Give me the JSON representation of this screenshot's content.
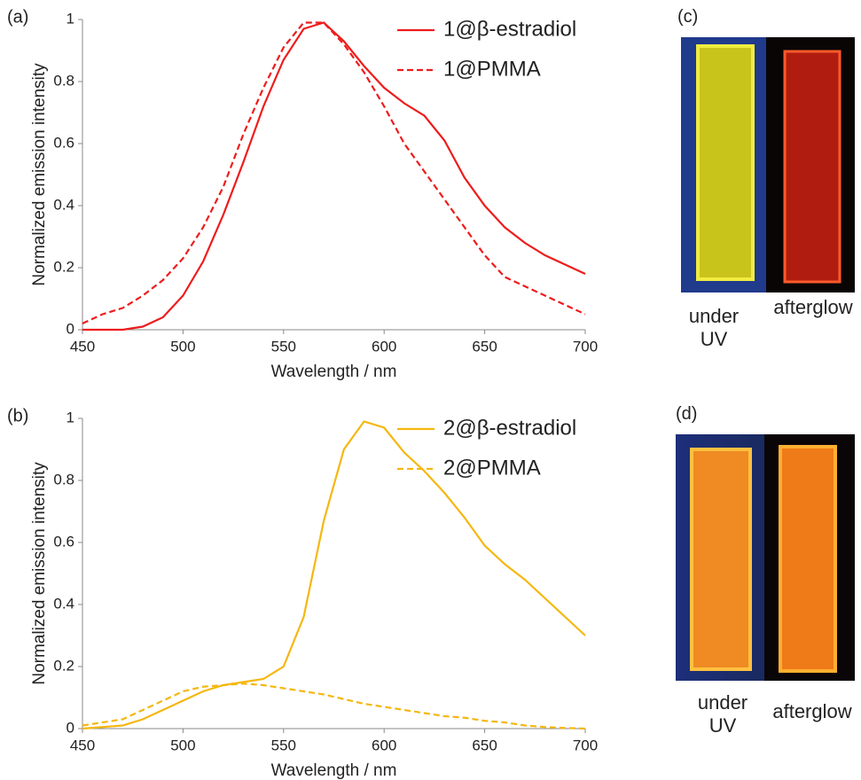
{
  "chart_data": [
    {
      "type": "line",
      "panel_label": "(a)",
      "xlabel": "Wavelength / nm",
      "ylabel": "Normalized emission intensity",
      "x": [
        450,
        460,
        470,
        480,
        490,
        500,
        510,
        520,
        530,
        540,
        550,
        560,
        570,
        580,
        590,
        600,
        610,
        620,
        630,
        640,
        650,
        660,
        670,
        680,
        690,
        700
      ],
      "series": [
        {
          "name": "1@β-estradiol",
          "color": "#ee1c1c",
          "line_style": "solid",
          "values": [
            0,
            0,
            0,
            0.01,
            0.04,
            0.11,
            0.22,
            0.37,
            0.54,
            0.72,
            0.87,
            0.97,
            0.99,
            0.93,
            0.85,
            0.78,
            0.73,
            0.69,
            0.61,
            0.49,
            0.4,
            0.33,
            0.28,
            0.24,
            0.21,
            0.18
          ]
        },
        {
          "name": "1@PMMA",
          "color": "#ee1c1c",
          "line_style": "dashed",
          "values": [
            0.02,
            0.05,
            0.07,
            0.11,
            0.16,
            0.23,
            0.33,
            0.46,
            0.63,
            0.78,
            0.91,
            0.99,
            0.99,
            0.92,
            0.83,
            0.72,
            0.6,
            0.51,
            0.42,
            0.33,
            0.24,
            0.17,
            0.14,
            0.11,
            0.08,
            0.05
          ]
        }
      ],
      "xlim": [
        450,
        700
      ],
      "xticks": [
        450,
        500,
        550,
        600,
        650,
        700
      ],
      "ylim": [
        0,
        1
      ],
      "yticks": [
        0,
        0.2,
        0.4,
        0.6,
        0.8,
        1
      ],
      "grid": false,
      "legend": "upper right"
    },
    {
      "type": "line",
      "panel_label": "(b)",
      "xlabel": "Wavelength / nm",
      "ylabel": "Normalized emission intensity",
      "x": [
        450,
        460,
        470,
        480,
        490,
        500,
        510,
        520,
        530,
        540,
        550,
        560,
        570,
        580,
        590,
        600,
        610,
        620,
        630,
        640,
        650,
        660,
        670,
        680,
        690,
        700
      ],
      "series": [
        {
          "name": "2@β-estradiol",
          "color": "#f5b70f",
          "line_style": "solid",
          "values": [
            0,
            0.005,
            0.01,
            0.03,
            0.06,
            0.09,
            0.12,
            0.14,
            0.15,
            0.16,
            0.2,
            0.36,
            0.67,
            0.9,
            0.99,
            0.97,
            0.89,
            0.83,
            0.76,
            0.68,
            0.59,
            0.53,
            0.48,
            0.42,
            0.36,
            0.3
          ]
        },
        {
          "name": "2@PMMA",
          "color": "#f5b70f",
          "line_style": "dashed",
          "values": [
            0.01,
            0.02,
            0.03,
            0.06,
            0.09,
            0.12,
            0.135,
            0.14,
            0.145,
            0.14,
            0.13,
            0.12,
            0.11,
            0.095,
            0.08,
            0.07,
            0.06,
            0.05,
            0.04,
            0.035,
            0.025,
            0.02,
            0.01,
            0.005,
            0.002,
            0
          ]
        }
      ],
      "xlim": [
        450,
        700
      ],
      "xticks": [
        450,
        500,
        550,
        600,
        650,
        700
      ],
      "ylim": [
        0,
        1
      ],
      "yticks": [
        0,
        0.2,
        0.4,
        0.6,
        0.8,
        1
      ],
      "grid": false,
      "legend": "upper right"
    }
  ],
  "photos": [
    {
      "label": "(c)",
      "captions": [
        "under UV",
        "afterglow"
      ]
    },
    {
      "label": "(d)",
      "captions": [
        "under UV",
        "afterglow"
      ]
    }
  ]
}
